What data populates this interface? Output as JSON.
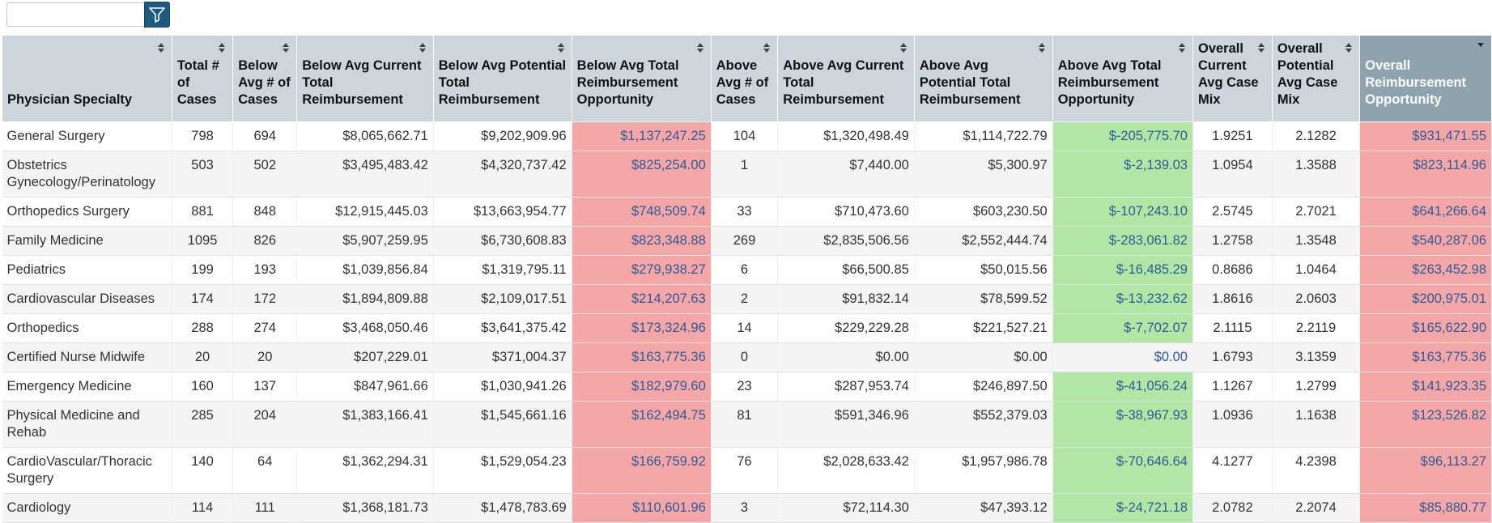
{
  "filter": {
    "value": "",
    "placeholder": ""
  },
  "columns": [
    "Physician Specialty",
    "Total # of Cases",
    "Below Avg # of Cases",
    "Below Avg Current Total Reimbursement",
    "Below Avg Potential Total Reimbursement",
    "Below Avg Total Reimbursement Opportunity",
    "Above Avg # of Cases",
    "Above Avg Current Total Reimbursement",
    "Above Avg Potential Total Reimbursement",
    "Above Avg Total Reimbursement Opportunity",
    "Overall Current Avg Case Mix",
    "Overall Potential Avg Case Mix",
    "Overall Reimbursement Opportunity"
  ],
  "colors": {
    "header": "#ccd5db",
    "sorted_header": "#8fa3af",
    "negative_opportunity": "#b2e6a4",
    "positive_opportunity": "#f5a7a7",
    "link_text": "#2c5a9a",
    "filter_button": "#1d5a80"
  },
  "rows": [
    [
      "General Surgery",
      "798",
      "694",
      "$8,065,662.71",
      "$9,202,909.96",
      "$1,137,247.25",
      "104",
      "$1,320,498.49",
      "$1,114,722.79",
      "$-205,775.70",
      "1.9251",
      "2.1282",
      "$931,471.55"
    ],
    [
      "Obstetrics Gynecology/Perinatology",
      "503",
      "502",
      "$3,495,483.42",
      "$4,320,737.42",
      "$825,254.00",
      "1",
      "$7,440.00",
      "$5,300.97",
      "$-2,139.03",
      "1.0954",
      "1.3588",
      "$823,114.96"
    ],
    [
      "Orthopedics Surgery",
      "881",
      "848",
      "$12,915,445.03",
      "$13,663,954.77",
      "$748,509.74",
      "33",
      "$710,473.60",
      "$603,230.50",
      "$-107,243.10",
      "2.5745",
      "2.7021",
      "$641,266.64"
    ],
    [
      "Family Medicine",
      "1095",
      "826",
      "$5,907,259.95",
      "$6,730,608.83",
      "$823,348.88",
      "269",
      "$2,835,506.56",
      "$2,552,444.74",
      "$-283,061.82",
      "1.2758",
      "1.3548",
      "$540,287.06"
    ],
    [
      "Pediatrics",
      "199",
      "193",
      "$1,039,856.84",
      "$1,319,795.11",
      "$279,938.27",
      "6",
      "$66,500.85",
      "$50,015.56",
      "$-16,485.29",
      "0.8686",
      "1.0464",
      "$263,452.98"
    ],
    [
      "Cardiovascular Diseases",
      "174",
      "172",
      "$1,894,809.88",
      "$2,109,017.51",
      "$214,207.63",
      "2",
      "$91,832.14",
      "$78,599.52",
      "$-13,232.62",
      "1.8616",
      "2.0603",
      "$200,975.01"
    ],
    [
      "Orthopedics",
      "288",
      "274",
      "$3,468,050.46",
      "$3,641,375.42",
      "$173,324.96",
      "14",
      "$229,229.28",
      "$221,527.21",
      "$-7,702.07",
      "2.1115",
      "2.2119",
      "$165,622.90"
    ],
    [
      "Certified Nurse Midwife",
      "20",
      "20",
      "$207,229.01",
      "$371,004.37",
      "$163,775.36",
      "0",
      "$0.00",
      "$0.00",
      "$0.00",
      "1.6793",
      "3.1359",
      "$163,775.36"
    ],
    [
      "Emergency Medicine",
      "160",
      "137",
      "$847,961.66",
      "$1,030,941.26",
      "$182,979.60",
      "23",
      "$287,953.74",
      "$246,897.50",
      "$-41,056.24",
      "1.1267",
      "1.2799",
      "$141,923.35"
    ],
    [
      "Physical Medicine and Rehab",
      "285",
      "204",
      "$1,383,166.41",
      "$1,545,661.16",
      "$162,494.75",
      "81",
      "$591,346.96",
      "$552,379.03",
      "$-38,967.93",
      "1.0936",
      "1.1638",
      "$123,526.82"
    ],
    [
      "CardioVascular/Thoracic Surgery",
      "140",
      "64",
      "$1,362,294.31",
      "$1,529,054.23",
      "$166,759.92",
      "76",
      "$2,028,633.42",
      "$1,957,986.78",
      "$-70,646.64",
      "4.1277",
      "4.2398",
      "$96,113.27"
    ],
    [
      "Cardiology",
      "114",
      "111",
      "$1,368,181.73",
      "$1,478,783.69",
      "$110,601.96",
      "3",
      "$72,114.30",
      "$47,393.12",
      "$-24,721.18",
      "2.0782",
      "2.2074",
      "$85,880.77"
    ]
  ]
}
